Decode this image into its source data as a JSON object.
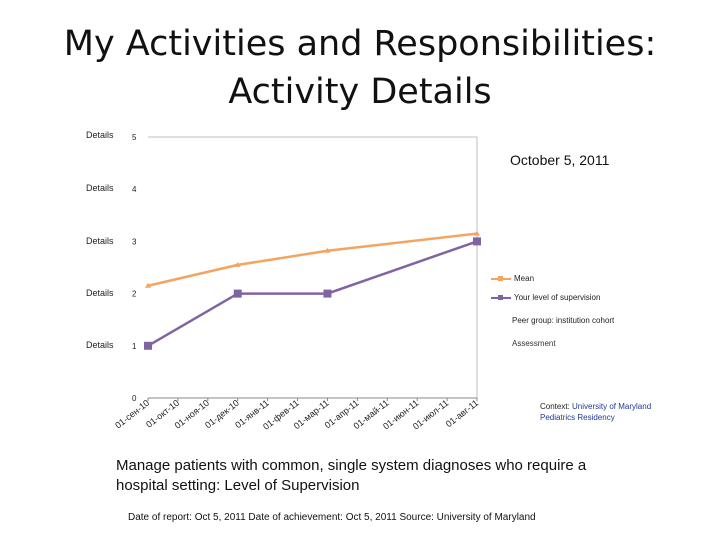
{
  "title": {
    "line1": "My Activities and Responsibilities:",
    "line2": "Activity Details"
  },
  "report_date_display": "October 5, 2011",
  "row_labels": [
    "Details",
    "Details",
    "Details",
    "Details",
    "Details"
  ],
  "legend": {
    "mean": "Mean",
    "supervision": "Your level of supervision",
    "peer_group": "Peer group: institution cohort",
    "assessment": "Assessment"
  },
  "context": {
    "prefix": "Context: ",
    "institution": "University of Maryland",
    "program": "Pediatrics Residency"
  },
  "description": "Manage patients with common, single system diagnoses who require a hospital setting: Level of Supervision",
  "footer": "Date of report: Oct 5, 2011 Date of achievement: Oct 5, 2011 Source: University of Maryland",
  "colors": {
    "mean": "#f4a460",
    "supervision": "#8064a2",
    "highlight": "#1f3a93"
  },
  "chart_data": {
    "type": "line",
    "title": "",
    "xlabel": "",
    "ylabel": "",
    "ylim": [
      0,
      5
    ],
    "yticks": [
      "0",
      "1",
      "2",
      "3",
      "4",
      "5"
    ],
    "categories": [
      "01-сен-10",
      "01-окт-10",
      "01-ноя-10",
      "01-дек-10",
      "01-янв-11",
      "01-фев-11",
      "01-мар-11",
      "01-апр-11",
      "01-май-11",
      "01-июн-11",
      "01-июл-11",
      "01-авг-11"
    ],
    "series": [
      {
        "name": "Mean",
        "points": [
          {
            "x": 0,
            "y": 2.15
          },
          {
            "x": 3,
            "y": 2.55
          },
          {
            "x": 6,
            "y": 2.82
          },
          {
            "x": 11,
            "y": 3.15
          }
        ]
      },
      {
        "name": "Your level of supervision",
        "points": [
          {
            "x": 0,
            "y": 1
          },
          {
            "x": 3,
            "y": 2
          },
          {
            "x": 6,
            "y": 2
          },
          {
            "x": 11,
            "y": 3
          }
        ]
      }
    ]
  }
}
